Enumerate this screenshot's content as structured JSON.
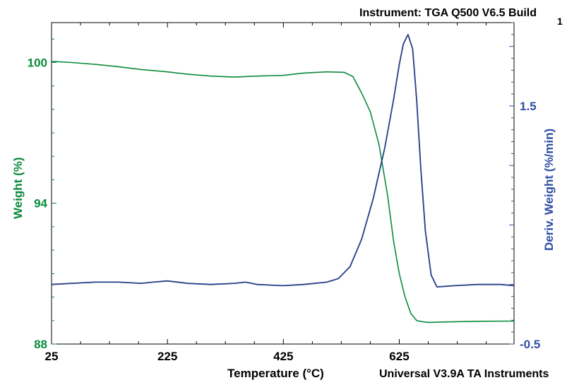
{
  "header": {
    "instrument": "Instrument: TGA Q500 V6.5 Build",
    "instrument_suffix": "1",
    "software": "Universal V3.9A TA Instruments"
  },
  "colors": {
    "weight": "#0a8a3c",
    "deriv": "#2f4fa6",
    "deriv_dark": "#1a2c6b",
    "axis": "#000000"
  },
  "chart_data": {
    "type": "line",
    "title": "",
    "xlabel": "Temperature (°C)",
    "ylabel": "Weight (%)",
    "y2label": "Deriv. Weight (%/min)",
    "xlim": [
      25,
      823
    ],
    "ylim": [
      88,
      101.7
    ],
    "y2lim": [
      -0.5,
      2.2
    ],
    "x_ticks": [
      25,
      225,
      425,
      625
    ],
    "y_ticks": [
      88,
      94,
      100
    ],
    "y2_ticks": [
      -0.5,
      1.5
    ],
    "grid": false,
    "legend": "none",
    "series": [
      {
        "name": "Weight (%)",
        "axis": "left",
        "x": [
          25,
          60,
          100,
          140,
          180,
          225,
          260,
          300,
          340,
          380,
          425,
          460,
          500,
          530,
          545,
          560,
          575,
          590,
          605,
          615,
          625,
          635,
          645,
          655,
          665,
          675,
          690,
          720,
          760,
          823
        ],
        "y": [
          100.05,
          100.0,
          99.92,
          99.82,
          99.7,
          99.6,
          99.5,
          99.42,
          99.38,
          99.42,
          99.45,
          99.55,
          99.6,
          99.58,
          99.4,
          98.7,
          97.9,
          96.5,
          94.3,
          92.4,
          91.0,
          90.0,
          89.3,
          89.0,
          88.95,
          88.92,
          88.93,
          88.95,
          88.97,
          88.98
        ]
      },
      {
        "name": "Deriv. Weight (%/min)",
        "axis": "right",
        "x": [
          25,
          60,
          100,
          140,
          180,
          200,
          225,
          260,
          300,
          340,
          360,
          380,
          425,
          460,
          500,
          520,
          540,
          560,
          580,
          600,
          615,
          625,
          632,
          640,
          648,
          655,
          662,
          670,
          680,
          690,
          720,
          760,
          800,
          823
        ],
        "y": [
          0.0,
          0.01,
          0.02,
          0.02,
          0.01,
          0.02,
          0.03,
          0.01,
          0.0,
          0.01,
          0.02,
          0.0,
          -0.01,
          0.0,
          0.02,
          0.05,
          0.15,
          0.38,
          0.72,
          1.15,
          1.55,
          1.85,
          2.02,
          2.1,
          1.98,
          1.55,
          0.98,
          0.45,
          0.08,
          -0.02,
          -0.01,
          0.0,
          0.0,
          -0.01
        ]
      }
    ]
  }
}
